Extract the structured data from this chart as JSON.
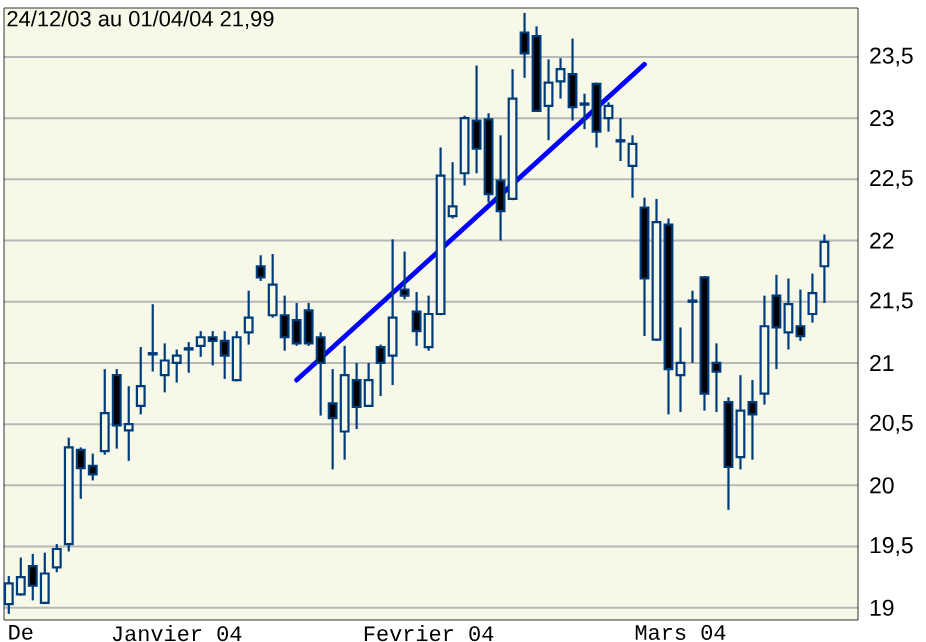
{
  "chart_data": {
    "type": "candlestick",
    "annotations": [
      "24/12/03 au 01/04/04 21,99"
    ],
    "categories": [
      null,
      "De",
      null,
      null,
      null,
      null,
      null,
      null,
      null,
      null,
      null,
      null,
      null,
      null,
      "Janvier 04",
      null,
      null,
      null,
      null,
      null,
      null,
      null,
      null,
      null,
      null,
      null,
      null,
      null,
      null,
      null,
      null,
      null,
      null,
      null,
      null,
      "Fevrier 04",
      null,
      null,
      null,
      null,
      null,
      null,
      null,
      null,
      null,
      null,
      null,
      null,
      null,
      null,
      null,
      null,
      null,
      null,
      null,
      null,
      "Mars 04",
      null,
      null,
      null,
      null,
      null,
      null,
      null,
      null,
      null,
      null,
      null,
      null
    ],
    "ylim": [
      18.9,
      23.9
    ],
    "yticks": [
      19,
      {
        "value": 19.5,
        "label": "19,5"
      },
      20,
      {
        "value": 20.5,
        "label": "20,5"
      },
      21,
      {
        "value": 21.5,
        "label": "21,5"
      },
      22,
      {
        "value": 22.5,
        "label": "22,5"
      },
      23,
      {
        "value": 23.5,
        "label": "23,5"
      }
    ],
    "grid": "y",
    "series": [
      {
        "type": "line",
        "color": "#0000ff",
        "values": [
          null,
          null,
          null,
          null,
          null,
          null,
          null,
          null,
          null,
          null,
          null,
          null,
          null,
          null,
          null,
          null,
          null,
          null,
          null,
          null,
          null,
          null,
          null,
          null,
          20.86,
          null,
          null,
          null,
          null,
          null,
          null,
          null,
          null,
          null,
          null,
          null,
          null,
          null,
          null,
          null,
          null,
          null,
          null,
          null,
          null,
          null,
          null,
          null,
          null,
          null,
          null,
          null,
          null,
          23.44,
          null,
          null,
          null,
          null,
          null,
          null,
          null,
          null,
          null,
          null,
          null,
          null,
          null,
          null,
          null
        ]
      },
      {
        "color": "#003c78",
        "ohlc": [
          [
            19.03,
            19.26,
            18.95,
            19.2
          ],
          [
            19.11,
            19.41,
            19.1,
            19.25
          ],
          [
            19.34,
            19.44,
            19.06,
            19.18
          ],
          [
            19.04,
            19.45,
            19.03,
            19.28
          ],
          [
            19.33,
            19.52,
            19.29,
            19.48
          ],
          [
            19.52,
            20.39,
            19.46,
            20.31
          ],
          [
            20.29,
            20.31,
            19.89,
            20.14
          ],
          [
            20.16,
            20.26,
            20.04,
            20.09
          ],
          [
            20.28,
            20.95,
            20.25,
            20.59
          ],
          [
            20.9,
            20.95,
            20.3,
            20.49
          ],
          [
            20.45,
            20.81,
            20.2,
            20.5
          ],
          [
            20.65,
            21.13,
            20.58,
            20.81
          ],
          [
            21.07,
            21.48,
            20.93,
            21.08
          ],
          [
            20.9,
            21.16,
            20.76,
            21.02
          ],
          [
            21.0,
            21.11,
            20.84,
            21.06
          ],
          [
            21.11,
            21.17,
            20.92,
            21.12
          ],
          [
            21.14,
            21.26,
            21.05,
            21.21
          ],
          [
            21.21,
            21.26,
            20.98,
            21.18
          ],
          [
            21.18,
            21.26,
            20.87,
            21.06
          ],
          [
            20.86,
            21.26,
            20.85,
            21.21
          ],
          [
            21.25,
            21.59,
            21.15,
            21.37
          ],
          [
            21.79,
            21.88,
            21.67,
            21.7
          ],
          [
            21.39,
            21.89,
            21.37,
            21.64
          ],
          [
            21.39,
            21.55,
            21.1,
            21.21
          ],
          [
            21.35,
            21.49,
            21.14,
            21.16
          ],
          [
            21.43,
            21.49,
            21.14,
            21.16
          ],
          [
            21.21,
            21.25,
            20.57,
            21.0
          ],
          [
            20.67,
            20.95,
            20.13,
            20.55
          ],
          [
            20.44,
            21.14,
            20.21,
            20.9
          ],
          [
            20.86,
            21.0,
            20.46,
            20.64
          ],
          [
            20.65,
            21.0,
            20.64,
            20.86
          ],
          [
            21.13,
            21.15,
            20.73,
            21.0
          ],
          [
            21.06,
            22.01,
            20.82,
            21.37
          ],
          [
            21.6,
            21.91,
            21.52,
            21.55
          ],
          [
            21.42,
            21.58,
            21.14,
            21.26
          ],
          [
            21.13,
            21.55,
            21.1,
            21.4
          ],
          [
            21.4,
            22.76,
            21.39,
            22.53
          ],
          [
            22.2,
            22.64,
            22.18,
            22.28
          ],
          [
            22.55,
            23.02,
            22.45,
            23.0
          ],
          [
            22.98,
            23.43,
            22.55,
            22.75
          ],
          [
            22.99,
            23.04,
            22.31,
            22.38
          ],
          [
            22.49,
            22.86,
            22.0,
            22.24
          ],
          [
            22.34,
            23.4,
            22.33,
            23.16
          ],
          [
            23.7,
            23.86,
            23.33,
            23.53
          ],
          [
            23.67,
            23.75,
            23.05,
            23.06
          ],
          [
            23.1,
            23.48,
            22.82,
            23.29
          ],
          [
            23.3,
            23.49,
            23.16,
            23.4
          ],
          [
            23.36,
            23.65,
            22.98,
            23.09
          ],
          [
            23.12,
            23.2,
            22.91,
            23.11
          ],
          [
            23.28,
            23.29,
            22.76,
            22.89
          ],
          [
            23.0,
            23.13,
            22.89,
            23.1
          ],
          [
            22.81,
            23.0,
            22.65,
            22.82
          ],
          [
            22.61,
            22.86,
            22.35,
            22.79
          ],
          [
            22.27,
            22.35,
            21.22,
            21.69
          ],
          [
            21.19,
            22.34,
            21.18,
            22.15
          ],
          [
            22.13,
            22.18,
            20.58,
            20.95
          ],
          [
            20.9,
            21.29,
            20.6,
            21.0
          ],
          [
            21.5,
            21.59,
            21.0,
            21.51
          ],
          [
            21.7,
            21.71,
            20.61,
            20.75
          ],
          [
            21.0,
            21.16,
            20.6,
            20.93
          ],
          [
            20.68,
            20.72,
            19.8,
            20.15
          ],
          [
            20.23,
            20.9,
            20.13,
            20.61
          ],
          [
            20.68,
            20.86,
            20.21,
            20.58
          ],
          [
            20.75,
            21.55,
            20.66,
            21.3
          ],
          [
            21.55,
            21.72,
            20.95,
            21.29
          ],
          [
            21.25,
            21.69,
            21.11,
            21.48
          ],
          [
            21.3,
            21.6,
            21.18,
            21.22
          ],
          [
            21.4,
            21.73,
            21.33,
            21.57
          ],
          [
            21.79,
            22.05,
            21.49,
            21.99
          ]
        ]
      }
    ]
  }
}
